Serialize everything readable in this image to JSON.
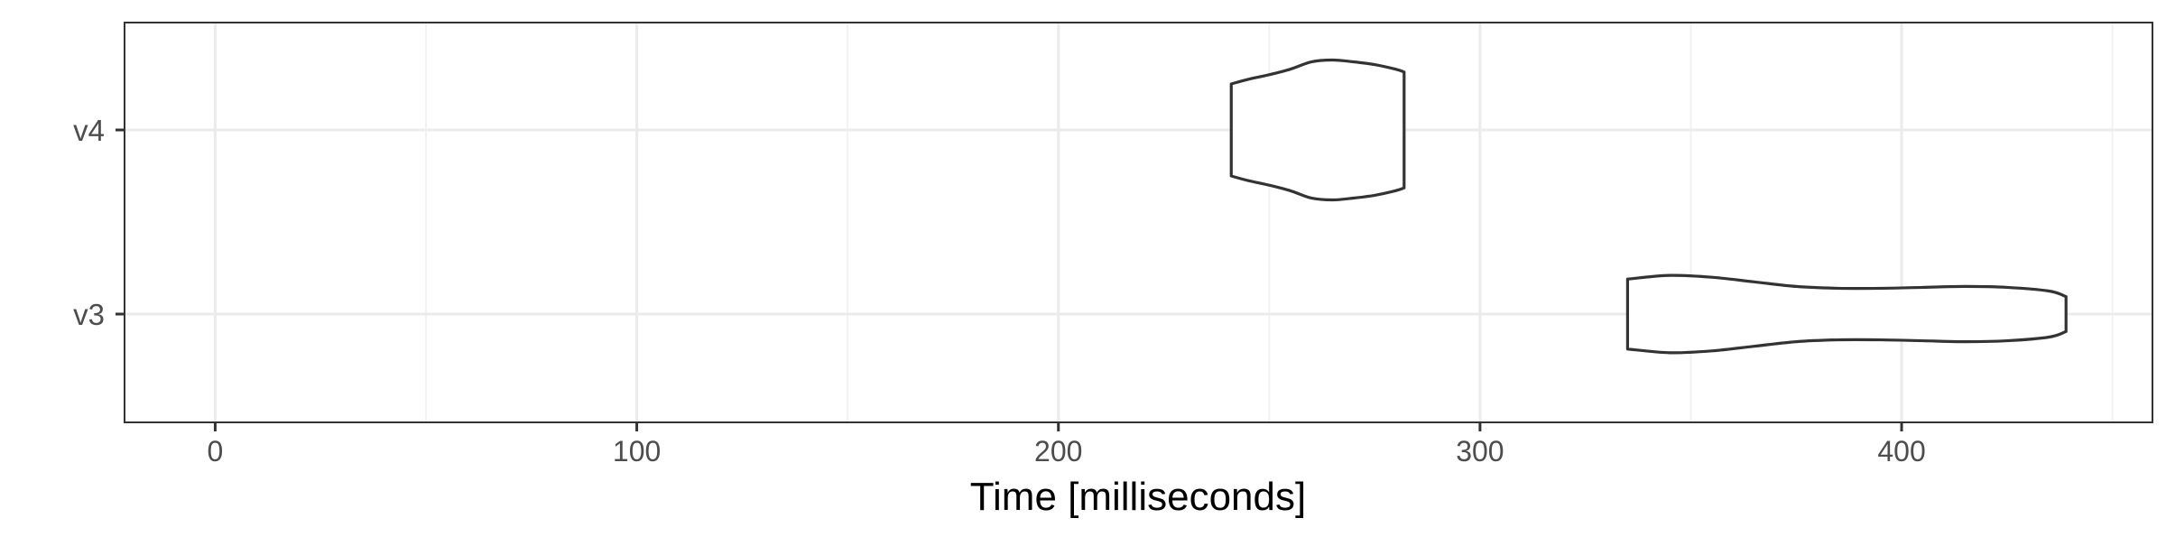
{
  "chart_data": {
    "type": "violin",
    "title": "",
    "xlabel": "Time [milliseconds]",
    "ylabel": "",
    "xlim": [
      -21.5,
      459.5
    ],
    "x_ticks": [
      0,
      100,
      200,
      300,
      400
    ],
    "x_tick_labels": [
      "0",
      "100",
      "200",
      "300",
      "400"
    ],
    "x_minor_ticks": [
      50,
      150,
      250,
      350,
      450
    ],
    "categories": [
      "v3",
      "v4"
    ],
    "grid": true,
    "legend": "none",
    "series": [
      {
        "category": "v4",
        "x_min": 241,
        "x_max": 282,
        "profile": [
          [
            241,
            0.5
          ],
          [
            245,
            0.55
          ],
          [
            250,
            0.6
          ],
          [
            255,
            0.66
          ],
          [
            260,
            0.74
          ],
          [
            265,
            0.76
          ],
          [
            270,
            0.74
          ],
          [
            275,
            0.71
          ],
          [
            280,
            0.66
          ],
          [
            282,
            0.63
          ]
        ]
      },
      {
        "category": "v3",
        "x_min": 335,
        "x_max": 439,
        "profile": [
          [
            335,
            0.38
          ],
          [
            345,
            0.42
          ],
          [
            355,
            0.4
          ],
          [
            365,
            0.35
          ],
          [
            375,
            0.3
          ],
          [
            385,
            0.28
          ],
          [
            395,
            0.28
          ],
          [
            405,
            0.29
          ],
          [
            415,
            0.3
          ],
          [
            425,
            0.29
          ],
          [
            435,
            0.25
          ],
          [
            439,
            0.19
          ]
        ]
      }
    ],
    "colors": {
      "outline": "#333333",
      "fill": "#ffffff",
      "grid_major": "#ebebeb",
      "grid_minor": "#f2f2f2",
      "panel_border": "#333333",
      "tick_label": "#4d4d4d",
      "axis_title": "#000000"
    }
  }
}
